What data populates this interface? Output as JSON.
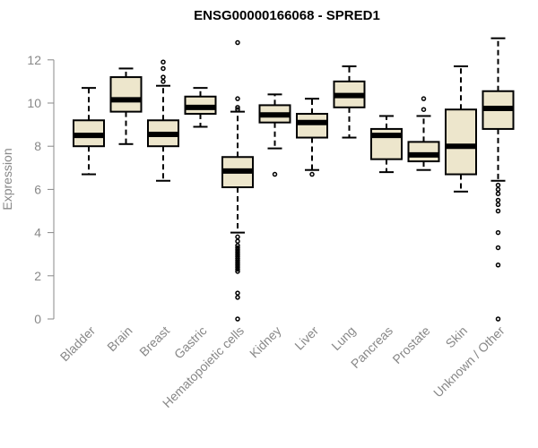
{
  "chart_data": {
    "type": "boxplot",
    "title": "ENSG00000166068 - SPRED1",
    "xlabel": "",
    "ylabel": "Expression",
    "ylim": [
      0,
      13
    ],
    "yticks": [
      0,
      2,
      4,
      6,
      8,
      10,
      12
    ],
    "grid": false,
    "colors": {
      "box_fill": "#ede6cc",
      "stroke": "#000000",
      "axis": "#888888"
    },
    "categories": [
      "Bladder",
      "Brain",
      "Breast",
      "Gastric",
      "Hematopoietic cells",
      "Kidney",
      "Liver",
      "Lung",
      "Pancreas",
      "Prostate",
      "Skin",
      "Unknown / Other"
    ],
    "boxes": [
      {
        "category": "Bladder",
        "whisker_low": 6.7,
        "q1": 8.0,
        "median": 8.5,
        "q3": 9.2,
        "whisker_high": 10.7,
        "outliers": []
      },
      {
        "category": "Brain",
        "whisker_low": 8.1,
        "q1": 9.6,
        "median": 10.15,
        "q3": 11.2,
        "whisker_high": 11.6,
        "outliers": []
      },
      {
        "category": "Breast",
        "whisker_low": 6.4,
        "q1": 8.0,
        "median": 8.55,
        "q3": 9.2,
        "whisker_high": 10.8,
        "outliers": [
          11.0,
          11.2,
          11.6,
          11.9
        ]
      },
      {
        "category": "Gastric",
        "whisker_low": 8.9,
        "q1": 9.5,
        "median": 9.8,
        "q3": 10.3,
        "whisker_high": 10.7,
        "outliers": []
      },
      {
        "category": "Hematopoietic cells",
        "whisker_low": 4.0,
        "q1": 6.1,
        "median": 6.85,
        "q3": 7.5,
        "whisker_high": 9.6,
        "outliers": [
          0.0,
          1.0,
          1.2,
          2.2,
          2.3,
          2.4,
          2.5,
          2.6,
          2.7,
          2.8,
          2.9,
          3.0,
          3.1,
          3.2,
          3.3,
          3.4,
          3.6,
          3.8,
          9.7,
          9.8,
          10.2,
          12.8
        ]
      },
      {
        "category": "Kidney",
        "whisker_low": 7.9,
        "q1": 9.1,
        "median": 9.45,
        "q3": 9.9,
        "whisker_high": 10.4,
        "outliers": [
          6.7
        ]
      },
      {
        "category": "Liver",
        "whisker_low": 6.9,
        "q1": 8.4,
        "median": 9.1,
        "q3": 9.5,
        "whisker_high": 10.2,
        "outliers": [
          6.7
        ]
      },
      {
        "category": "Lung",
        "whisker_low": 8.4,
        "q1": 9.8,
        "median": 10.35,
        "q3": 11.0,
        "whisker_high": 11.7,
        "outliers": []
      },
      {
        "category": "Pancreas",
        "whisker_low": 6.8,
        "q1": 7.4,
        "median": 8.5,
        "q3": 8.8,
        "whisker_high": 9.4,
        "outliers": []
      },
      {
        "category": "Prostate",
        "whisker_low": 6.9,
        "q1": 7.3,
        "median": 7.6,
        "q3": 8.2,
        "whisker_high": 9.4,
        "outliers": [
          9.7,
          10.2
        ]
      },
      {
        "category": "Skin",
        "whisker_low": 5.9,
        "q1": 6.7,
        "median": 8.0,
        "q3": 9.7,
        "whisker_high": 11.7,
        "outliers": []
      },
      {
        "category": "Unknown / Other",
        "whisker_low": 6.4,
        "q1": 8.8,
        "median": 9.75,
        "q3": 10.55,
        "whisker_high": 13.0,
        "outliers": [
          0.0,
          2.5,
          3.3,
          4.0,
          5.0,
          5.3,
          5.5,
          5.8,
          6.0,
          6.2
        ]
      }
    ]
  }
}
